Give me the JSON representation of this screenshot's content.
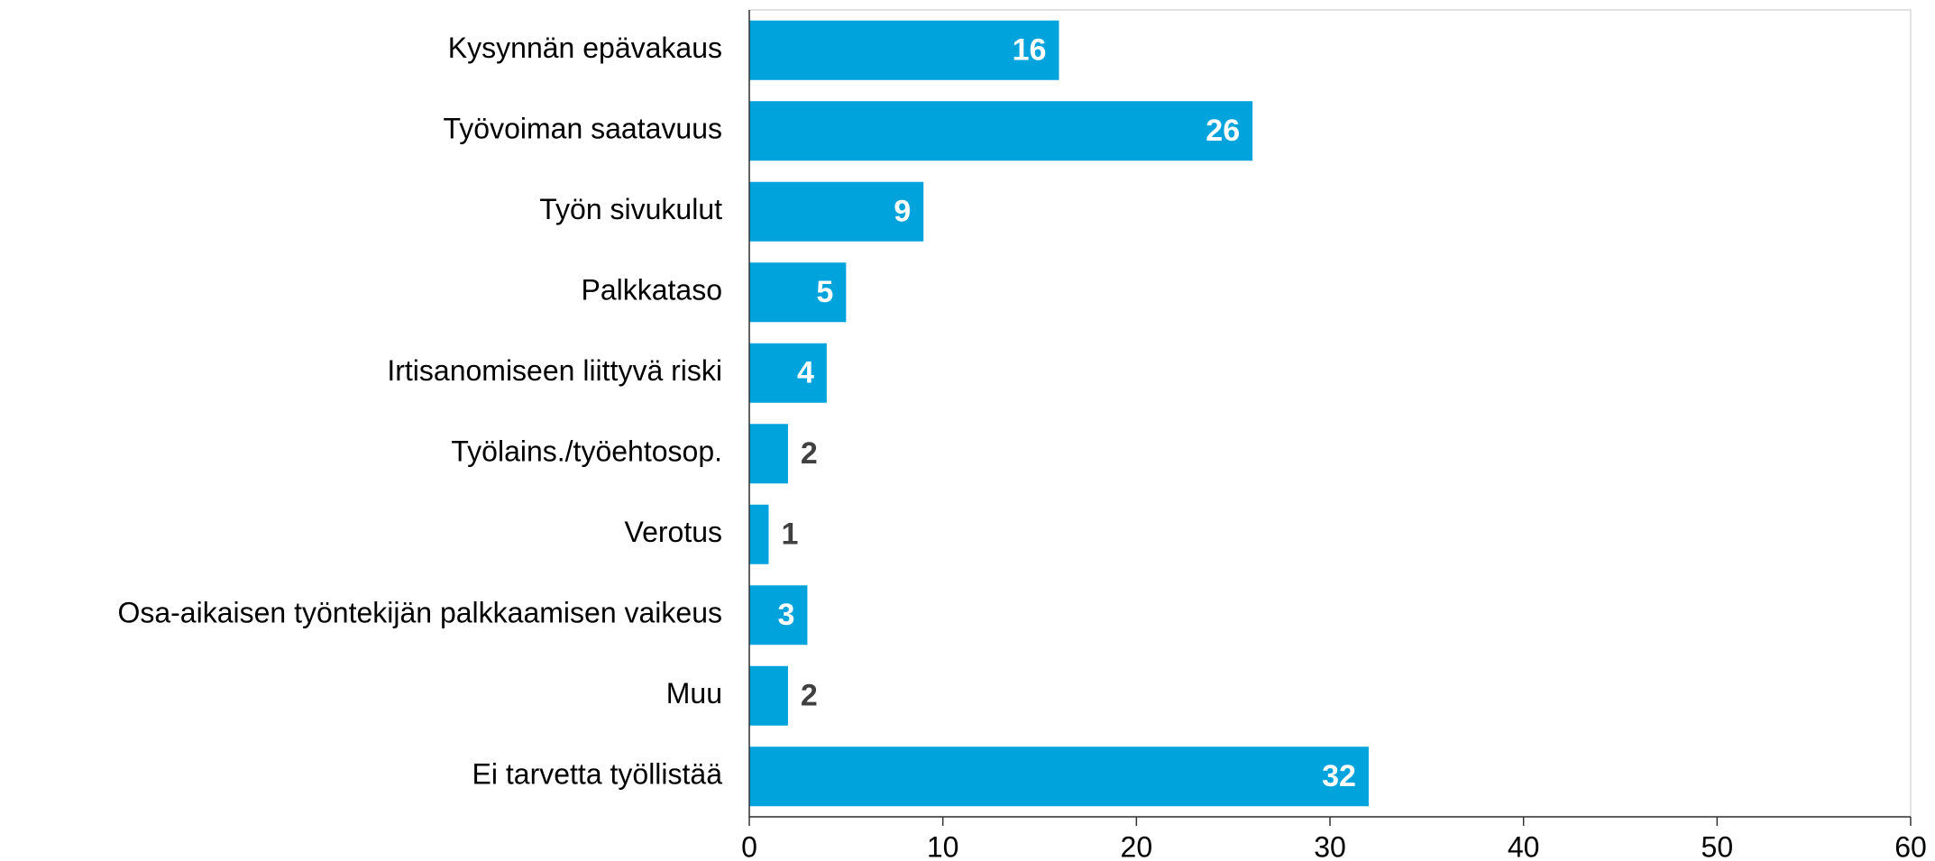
{
  "chart_data": {
    "type": "bar",
    "orientation": "horizontal",
    "categories": [
      "Kysynnän epävakaus",
      "Työvoiman saatavuus",
      "Työn sivukulut",
      "Palkkataso",
      "Irtisanomiseen liittyvä riski",
      "Työlains./työehtosop.",
      "Verotus",
      "Osa-aikaisen työntekijän palkkaamisen vaikeus",
      "Muu",
      "Ei tarvetta työllistää"
    ],
    "values": [
      16,
      26,
      9,
      5,
      4,
      2,
      1,
      3,
      2,
      32
    ],
    "color": "#00a3dc",
    "xlim": [
      0,
      60
    ],
    "xticks": [
      0,
      10,
      20,
      30,
      40,
      50,
      60
    ],
    "grid": false
  }
}
